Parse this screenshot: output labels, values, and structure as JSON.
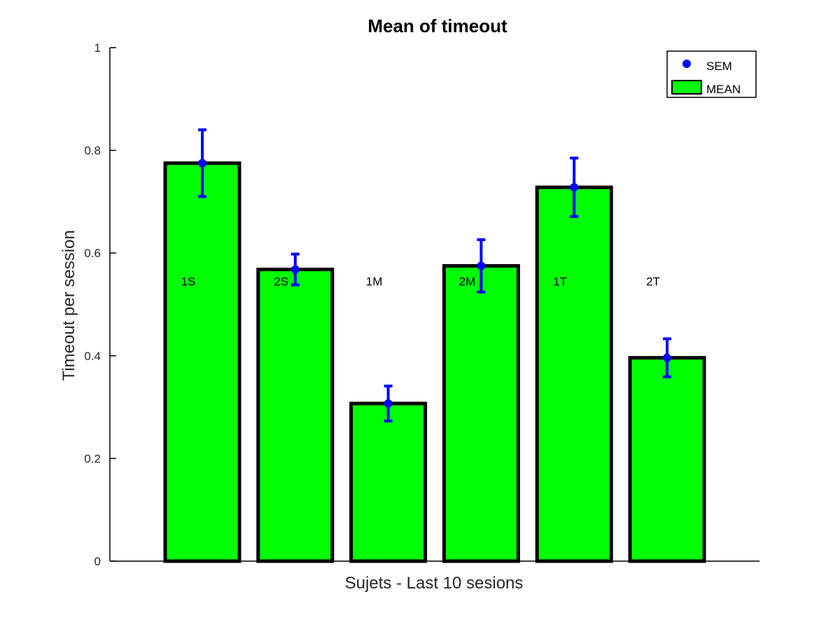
{
  "chart_data": {
    "type": "bar",
    "title": "Mean of timeout",
    "xlabel": "Sujets - Last 10 sesions",
    "ylabel": "Timeout per session",
    "ylim": [
      0,
      1
    ],
    "yticks": [
      0,
      0.2,
      0.4,
      0.6,
      0.8,
      1
    ],
    "ytick_labels": [
      "0",
      "0.2",
      "0.4",
      "0.6",
      "0.8",
      "1"
    ],
    "categories": [
      "1S",
      "2S",
      "1M",
      "2M",
      "1T",
      "2T"
    ],
    "series": [
      {
        "name": "MEAN",
        "values": [
          0.775,
          0.568,
          0.307,
          0.575,
          0.728,
          0.396
        ]
      },
      {
        "name": "SEM",
        "errors": [
          0.065,
          0.03,
          0.034,
          0.051,
          0.057,
          0.037
        ]
      }
    ],
    "category_label_y": 0.545,
    "legend": {
      "position": "top-right",
      "entries": [
        "SEM",
        "MEAN"
      ]
    },
    "grid": false,
    "colors": {
      "bar": "#00ff00",
      "bar_edge": "#000000",
      "error": "#0000ff",
      "axis": "#000000"
    }
  }
}
